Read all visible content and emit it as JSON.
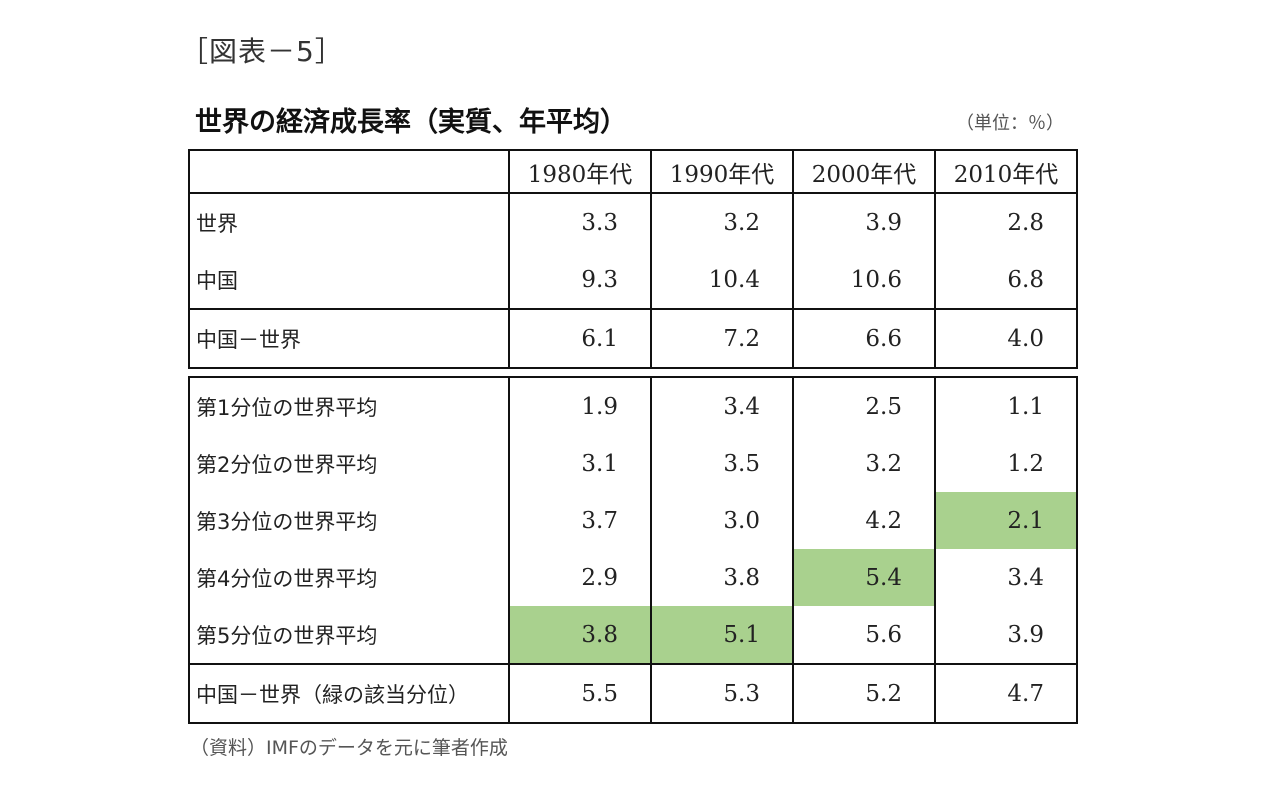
{
  "figure_label": "［図表－5］",
  "title": "世界の経済成長率（実質、年平均）",
  "unit": "（単位：％）",
  "columns": [
    "1980年代",
    "1990年代",
    "2000年代",
    "2010年代"
  ],
  "table1": {
    "rows": [
      {
        "label": "世界",
        "values": [
          "3.3",
          "3.2",
          "3.9",
          "2.8"
        ]
      },
      {
        "label": "中国",
        "values": [
          "9.3",
          "10.4",
          "10.6",
          "6.8"
        ]
      },
      {
        "label": "中国－世界",
        "values": [
          "6.1",
          "7.2",
          "6.6",
          "4.0"
        ]
      }
    ]
  },
  "table2": {
    "rows": [
      {
        "label": "第1分位の世界平均",
        "values": [
          "1.9",
          "3.4",
          "2.5",
          "1.1"
        ]
      },
      {
        "label": "第2分位の世界平均",
        "values": [
          "3.1",
          "3.5",
          "3.2",
          "1.2"
        ]
      },
      {
        "label": "第3分位の世界平均",
        "values": [
          "3.7",
          "3.0",
          "4.2",
          "2.1"
        ]
      },
      {
        "label": "第4分位の世界平均",
        "values": [
          "2.9",
          "3.8",
          "5.4",
          "3.4"
        ]
      },
      {
        "label": "第5分位の世界平均",
        "values": [
          "3.8",
          "5.1",
          "5.6",
          "3.9"
        ]
      },
      {
        "label": "中国－世界（緑の該当分位）",
        "values": [
          "5.5",
          "5.3",
          "5.2",
          "4.7"
        ]
      }
    ]
  },
  "highlight_color": "#a9d18e",
  "source": "（資料）IMFのデータを元に筆者作成"
}
